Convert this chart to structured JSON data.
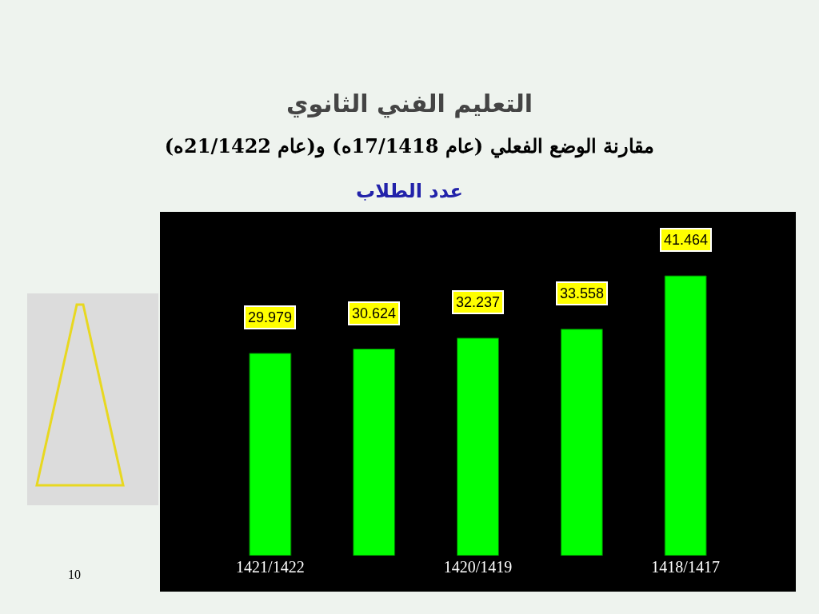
{
  "chart_data": {
    "type": "bar",
    "title": "التعليم الفني الثانوي",
    "subtitle": "مقارنة الوضع الفعلي (عام 17/1418ه) و(عام 21/1422ه)",
    "annotations": [
      "عدد الطلاب",
      "10"
    ],
    "categories": [
      "1421/1422",
      null,
      "1420/1419",
      null,
      "1418/1417"
    ],
    "values": [
      29.979,
      30.624,
      32.237,
      33.558,
      41.464
    ],
    "color": "#00ff00",
    "data_labels": true
  }
}
